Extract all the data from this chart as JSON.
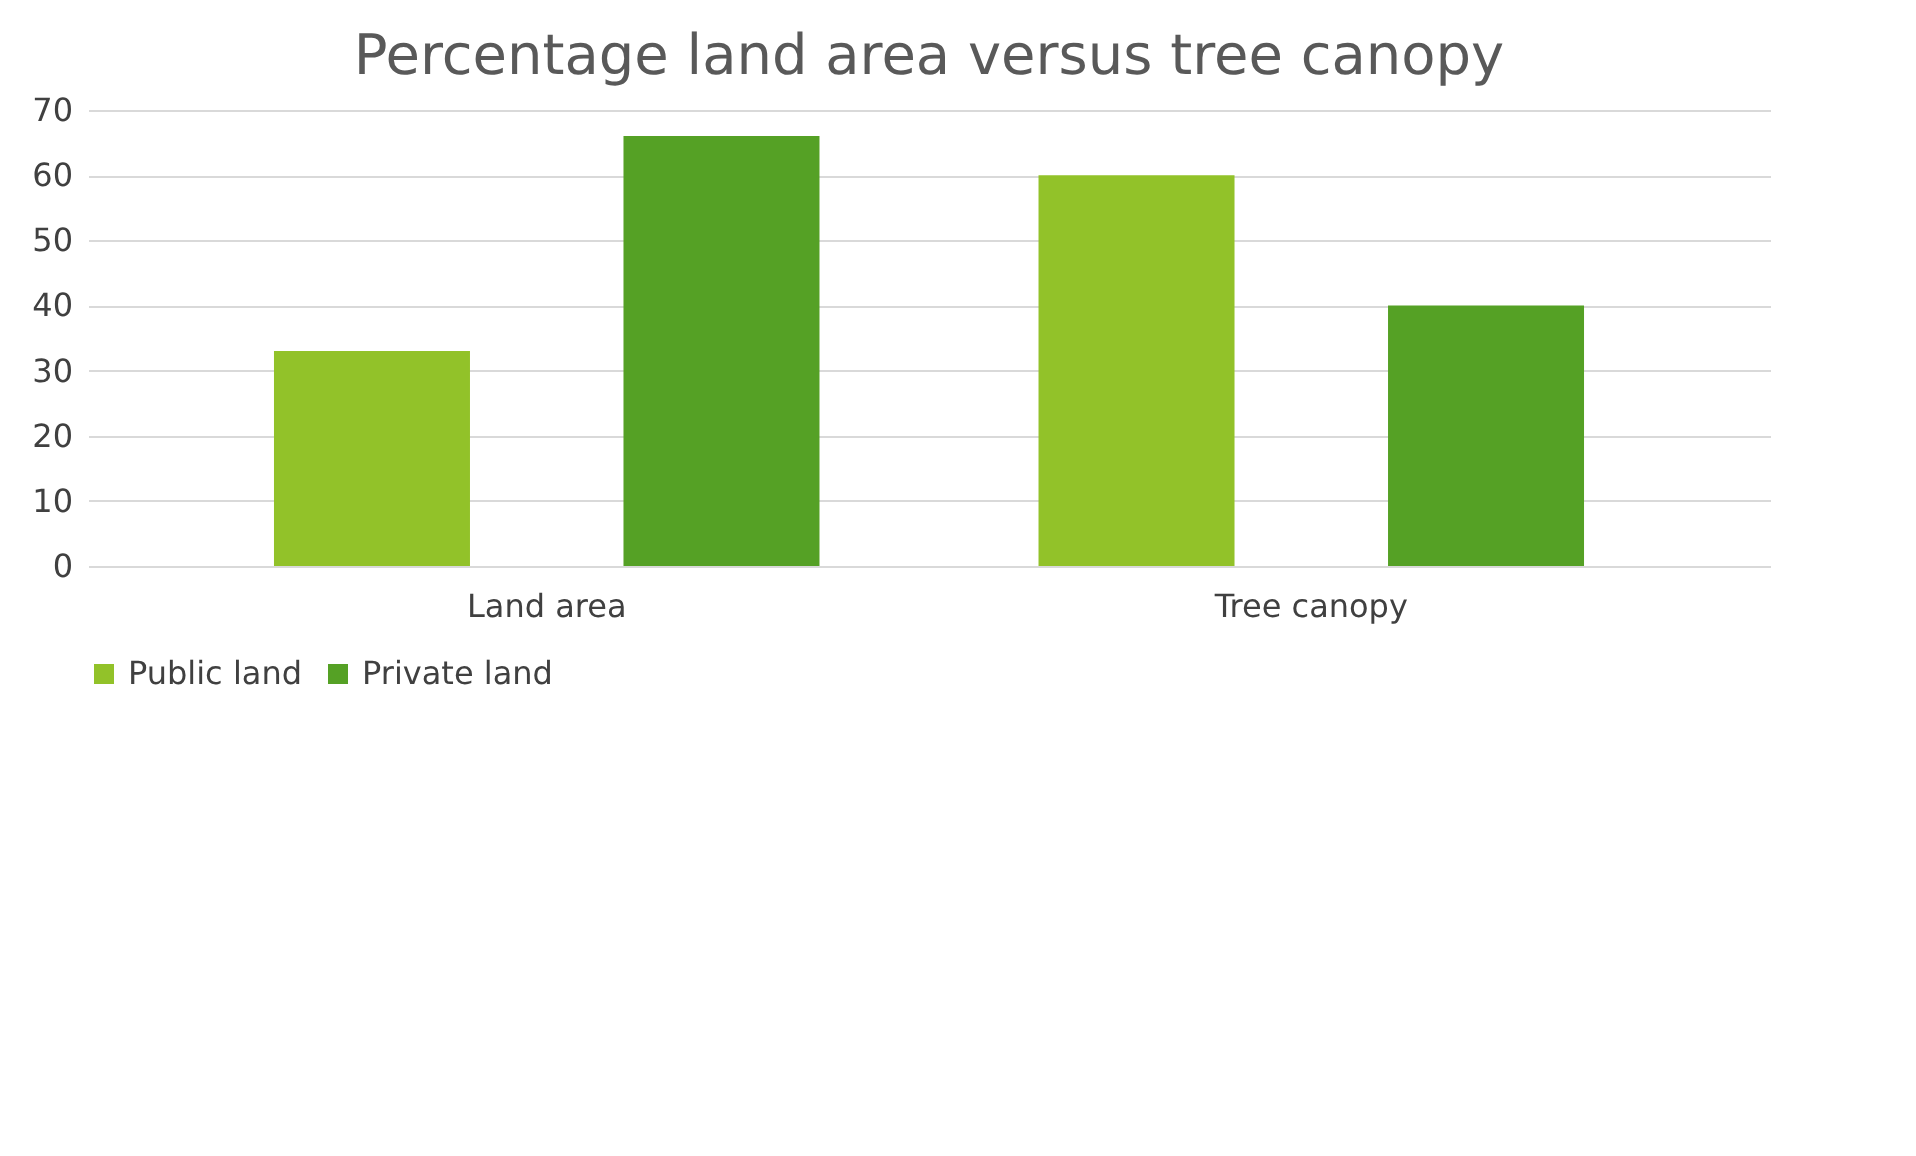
{
  "chart_data": {
    "type": "bar",
    "title": "Percentage land area versus tree canopy",
    "categories": [
      "Land area",
      "Tree canopy"
    ],
    "series": [
      {
        "name": "Public land",
        "color": "#92c229",
        "values": [
          33,
          60
        ]
      },
      {
        "name": "Private land",
        "color": "#55a125",
        "values": [
          66,
          40
        ]
      }
    ],
    "ylim": [
      0,
      70
    ],
    "yticks": [
      0,
      10,
      20,
      30,
      40,
      50,
      60,
      70
    ],
    "grid": "y",
    "legend": "bottom"
  }
}
